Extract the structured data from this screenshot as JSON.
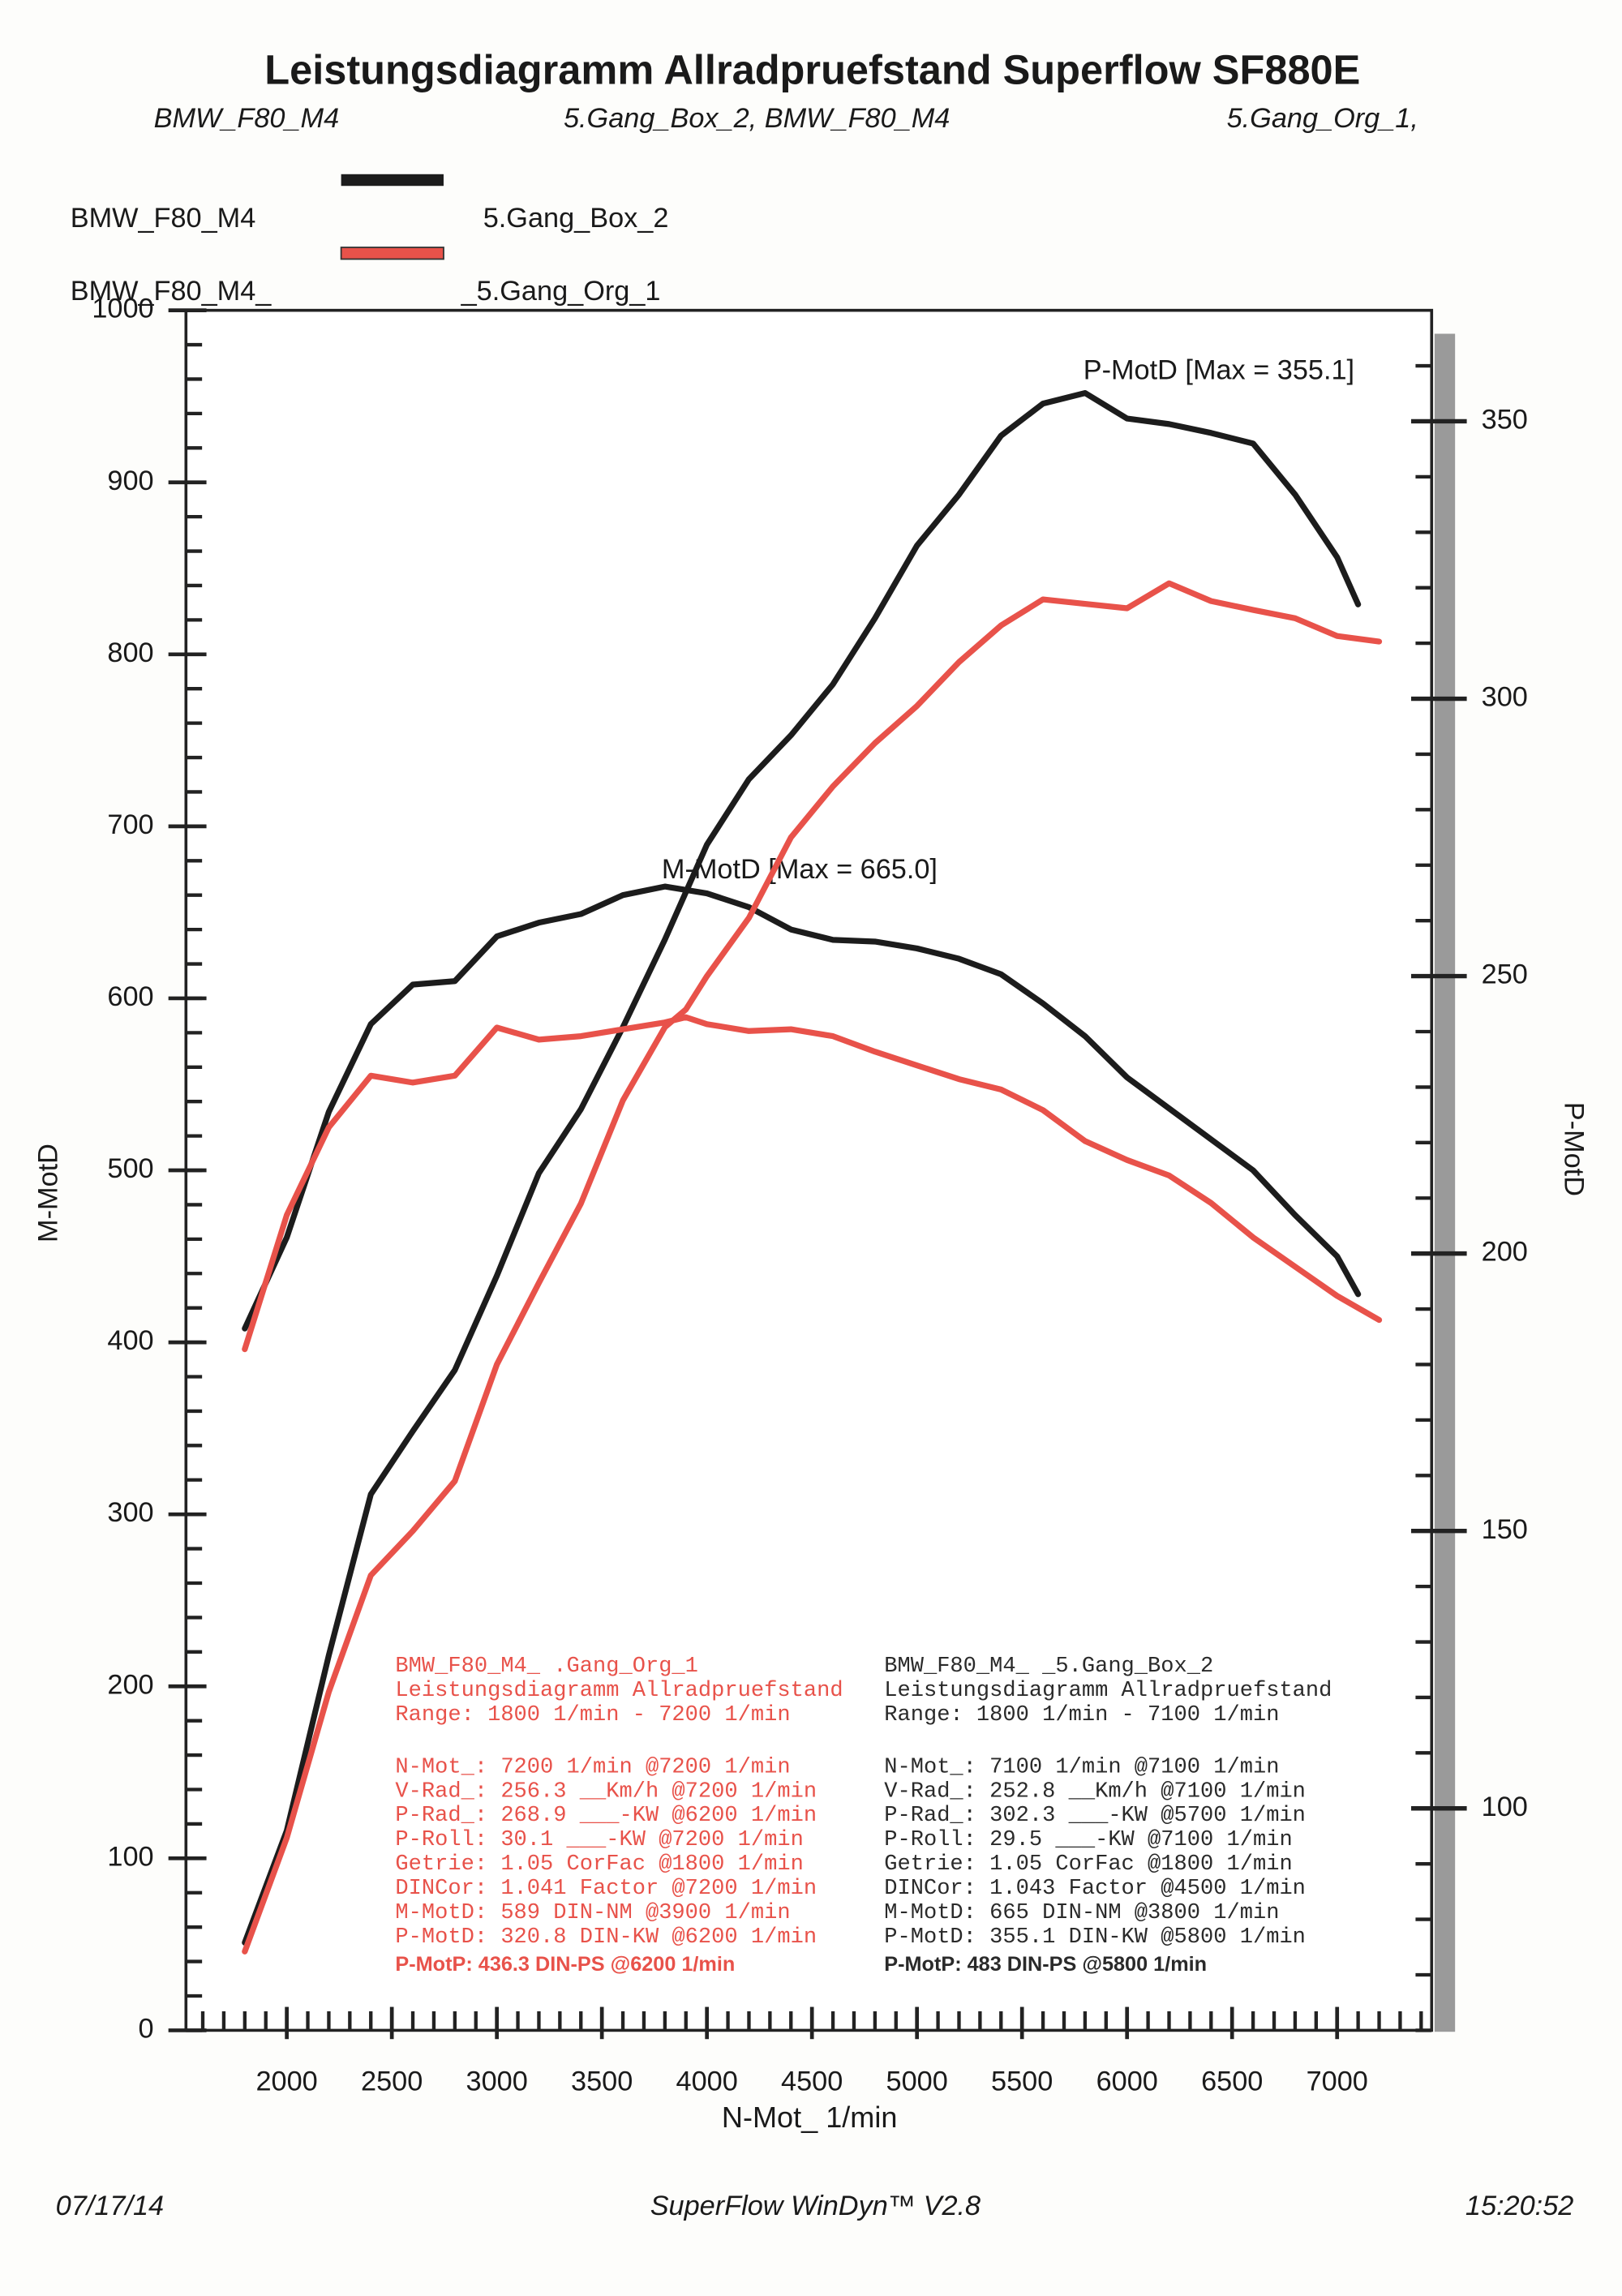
{
  "chart_data": {
    "type": "line",
    "title": "Leistungsdiagramm Allradpruefstand Superflow SF880E",
    "header": [
      "BMW_F80_M4",
      "5.Gang_Box_2, BMW_F80_M4",
      "5.Gang_Org_1,"
    ],
    "x_label": "N-Mot_ 1/min",
    "y_label": "M-MotD",
    "y2_label": "P-MotD",
    "xlim": [
      1520,
      7450
    ],
    "ylim": [
      0,
      1000
    ],
    "y2lim": [
      60,
      370
    ],
    "xticks": [
      2000,
      2500,
      3000,
      3500,
      4000,
      4500,
      5000,
      5500,
      6000,
      6500,
      7000
    ],
    "yticks": [
      0,
      100,
      200,
      300,
      400,
      500,
      600,
      700,
      800,
      900,
      1000
    ],
    "y2ticks": [
      100,
      150,
      200,
      250,
      300,
      350
    ],
    "xminorticks": [
      1600,
      1700,
      1800,
      1900,
      2000,
      2100,
      2200,
      2300,
      2400,
      2500,
      2600,
      2700,
      2800,
      2900,
      3000,
      3100,
      3200,
      3300,
      3400,
      3500,
      3600,
      3700,
      3800,
      3900,
      4000,
      4100,
      4200,
      4300,
      4400,
      4500,
      4600,
      4700,
      4800,
      4900,
      5000,
      5100,
      5200,
      5300,
      5400,
      5500,
      5600,
      5700,
      5800,
      5900,
      6000,
      6100,
      6200,
      6300,
      6400,
      6500,
      6600,
      6700,
      6800,
      6900,
      7000,
      7100,
      7200,
      7300,
      7400
    ],
    "yminorticks": [
      0,
      20,
      40,
      60,
      80,
      100,
      120,
      140,
      160,
      180,
      200,
      220,
      240,
      260,
      280,
      300,
      320,
      340,
      360,
      380,
      400,
      420,
      440,
      460,
      480,
      500,
      520,
      540,
      560,
      580,
      600,
      620,
      640,
      660,
      680,
      700,
      720,
      740,
      760,
      780,
      800,
      820,
      840,
      860,
      880,
      900,
      920,
      940,
      960,
      980,
      1000
    ],
    "y2minorticks": [
      60,
      70,
      80,
      90,
      100,
      110,
      120,
      130,
      140,
      150,
      160,
      170,
      180,
      190,
      200,
      210,
      220,
      230,
      240,
      250,
      260,
      270,
      280,
      290,
      300,
      310,
      320,
      330,
      340,
      350,
      360
    ],
    "grid": false,
    "series": [
      {
        "vehicle": "BMW_F80_M4",
        "name": "5.Gang_Box_2",
        "color": "#1c1c1c",
        "x": [
          1800,
          2000,
          2200,
          2400,
          2600,
          2800,
          3000,
          3200,
          3400,
          3600,
          3800,
          4000,
          4200,
          4400,
          4600,
          4800,
          5000,
          5200,
          5400,
          5600,
          5800,
          6000,
          6200,
          6400,
          6600,
          6800,
          7000,
          7100
        ],
        "torque": [
          408,
          461,
          534,
          585,
          608,
          610,
          636,
          644,
          649,
          660,
          665,
          661,
          653,
          640,
          634,
          633,
          629,
          623,
          614,
          597,
          578,
          554,
          536,
          518,
          500,
          474,
          450,
          428
        ],
        "power": [
          75.8,
          96,
          127.6,
          156.6,
          168,
          179,
          196,
          214.5,
          226,
          240.8,
          256.6,
          273.7,
          285.5,
          293.4,
          302.6,
          314.5,
          327.6,
          336.8,
          347.4,
          353.2,
          355.1,
          350.5,
          349.5,
          347.9,
          346,
          336.8,
          325.5,
          317
        ]
      },
      {
        "vehicle": "BMW_F80_M4_",
        "name": "_5.Gang_Org_1",
        "color": "#e8524a",
        "x": [
          1800,
          2000,
          2200,
          2400,
          2600,
          2800,
          3000,
          3200,
          3400,
          3600,
          3800,
          3900,
          4000,
          4200,
          4400,
          4600,
          4800,
          5000,
          5200,
          5400,
          5600,
          5800,
          6000,
          6200,
          6400,
          6600,
          6800,
          7000,
          7200
        ],
        "torque": [
          396,
          474,
          525,
          555,
          551,
          555,
          583,
          576,
          578,
          582,
          586,
          589,
          585,
          581,
          582,
          578,
          569,
          561,
          553,
          547,
          535,
          517,
          506,
          497,
          481,
          461,
          444,
          427,
          413
        ],
        "power": [
          74.2,
          94.7,
          121,
          142,
          150,
          159,
          180,
          194.7,
          209,
          227.6,
          240.8,
          244,
          250,
          260.5,
          275,
          284.2,
          292,
          298.7,
          306.6,
          313.2,
          317.9,
          317.1,
          316.3,
          320.8,
          317.6,
          316,
          314.5,
          311.3,
          310.3
        ]
      }
    ],
    "annotations": [
      "P-MotD [Max = 355.1]",
      "M-MotD [Max = 665.0]"
    ],
    "summaries": [
      {
        "color": "#e8524a",
        "lines": [
          "BMW_F80_M4_         .Gang_Org_1",
          "Leistungsdiagramm Allradpruefstand",
          "Range: 1800 1/min - 7200 1/min",
          "N-Mot_:   7200 1/min  @7200 1/min",
          "V-Rad_:  256.3 __Km/h @7200 1/min",
          "P-Rad_:  268.9 ___-KW @6200 1/min",
          "P-Roll:   30.1 ___-KW @7200 1/min",
          "Getrie:   1.05 CorFac @1800 1/min",
          "DINCor:  1.041 Factor @7200 1/min",
          "M-MotD:    589 DIN-NM @3900 1/min",
          "P-MotD:  320.8 DIN-KW @6200 1/min",
          "P-MotP:  436.3 DIN-PS @6200 1/min"
        ]
      },
      {
        "color": "#2a2a2a",
        "lines": [
          "BMW_F80_M4_         _5.Gang_Box_2",
          "Leistungsdiagramm Allradpruefstand",
          "Range: 1800 1/min - 7100 1/min",
          "N-Mot_:   7100 1/min  @7100 1/min",
          "V-Rad_:  252.8 __Km/h @7100 1/min",
          "P-Rad_:  302.3 ___-KW @5700 1/min",
          "P-Roll:   29.5 ___-KW @7100 1/min",
          "Getrie:   1.05 CorFac @1800 1/min",
          "DINCor:  1.043 Factor @4500 1/min",
          "M-MotD:    665 DIN-NM @3800 1/min",
          "P-MotD:  355.1 DIN-KW @5800 1/min",
          "P-MotP:    483 DIN-PS @5800 1/min"
        ]
      }
    ],
    "footer": [
      "07/17/14",
      "SuperFlow WinDyn™ V2.8",
      "15:20:52"
    ]
  }
}
